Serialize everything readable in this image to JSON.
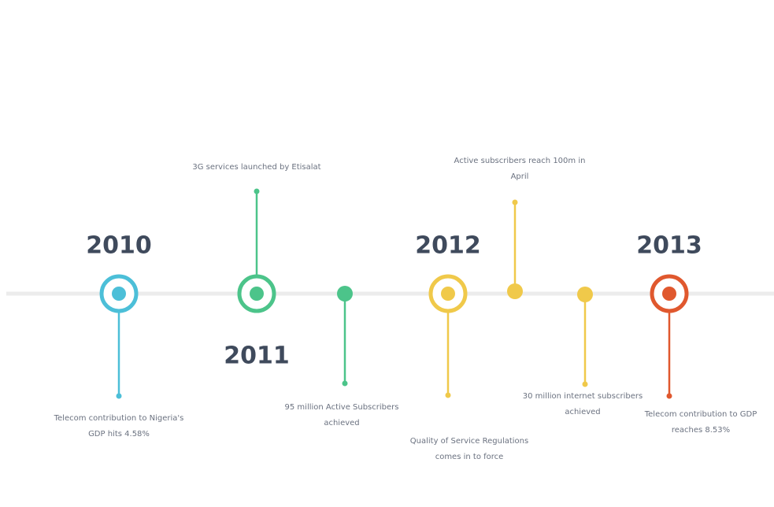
{
  "events": [
    {
      "year": "2010",
      "color": "#4cbfd8",
      "text": [
        "Telecom contribution to Nigeria's",
        "GDP hits 4.58%"
      ]
    },
    {
      "year": "2011",
      "color": "#4cc48a",
      "text": [
        "3G services launched by Etisalat"
      ]
    },
    {
      "color": "#4cc48a",
      "text": [
        "95 million Active Subscribers",
        "achieved"
      ]
    },
    {
      "year": "2012",
      "color": "#f0c94a",
      "text": [
        "Quality of Service Regulations",
        "comes in to force"
      ]
    },
    {
      "color": "#f0c94a",
      "text": [
        "Active subscribers reach 100m in",
        "April"
      ]
    },
    {
      "color": "#f0c94a",
      "text": [
        "30 million internet subscribers",
        "achieved"
      ]
    },
    {
      "year": "2013",
      "color": "#e0582e",
      "text": [
        "Telecom contribution to GDP",
        "reaches 8.53%"
      ]
    }
  ]
}
